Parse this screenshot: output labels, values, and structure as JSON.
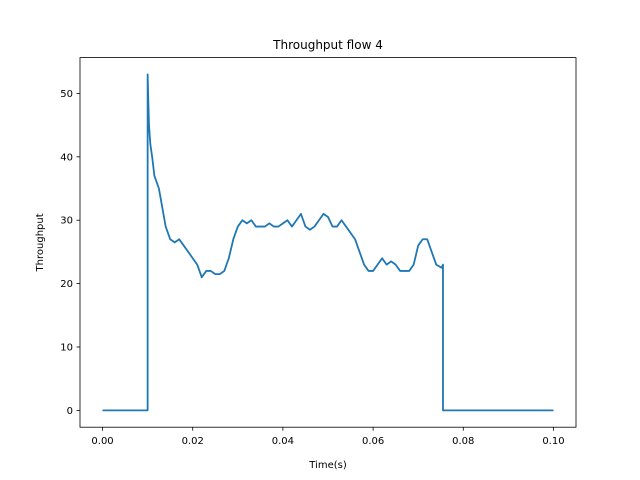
{
  "chart_data": {
    "type": "line",
    "title": "Throughput flow 4",
    "xlabel": "Time(s)",
    "ylabel": "Throughput",
    "xlim": [
      -0.005,
      0.105
    ],
    "ylim": [
      -2.65,
      55.65
    ],
    "xticks": [
      0.0,
      0.02,
      0.04,
      0.06,
      0.08,
      0.1
    ],
    "xtick_labels": [
      "0.00",
      "0.02",
      "0.04",
      "0.06",
      "0.08",
      "0.10"
    ],
    "yticks": [
      0,
      10,
      20,
      30,
      40,
      50
    ],
    "ytick_labels": [
      "0",
      "10",
      "20",
      "30",
      "40",
      "50"
    ],
    "grid": false,
    "line_color": "#1f77b4",
    "series": [
      {
        "x": [
          0.0,
          0.01,
          0.01,
          0.0101,
          0.0103,
          0.0106,
          0.011,
          0.0115,
          0.012,
          0.0125,
          0.013,
          0.0135,
          0.014,
          0.015,
          0.016,
          0.017,
          0.018,
          0.019,
          0.02,
          0.021,
          0.022,
          0.023,
          0.024,
          0.025,
          0.026,
          0.027,
          0.028,
          0.029,
          0.03,
          0.031,
          0.032,
          0.033,
          0.034,
          0.035,
          0.036,
          0.037,
          0.038,
          0.039,
          0.04,
          0.041,
          0.042,
          0.043,
          0.044,
          0.045,
          0.046,
          0.047,
          0.048,
          0.049,
          0.05,
          0.051,
          0.052,
          0.053,
          0.054,
          0.055,
          0.056,
          0.057,
          0.058,
          0.059,
          0.06,
          0.061,
          0.062,
          0.063,
          0.064,
          0.065,
          0.066,
          0.067,
          0.068,
          0.069,
          0.07,
          0.071,
          0.072,
          0.073,
          0.074,
          0.0752,
          0.0755,
          0.0755,
          0.1
        ],
        "y": [
          0,
          0,
          53,
          50,
          45,
          42,
          40,
          37,
          36,
          35,
          33,
          31,
          29,
          27,
          26.5,
          27,
          26,
          25,
          24,
          23,
          21,
          22,
          22,
          21.5,
          21.5,
          22,
          24,
          27,
          29,
          30,
          29.5,
          30,
          29,
          29,
          29,
          29.5,
          29,
          29,
          29.5,
          30,
          29,
          30,
          31,
          29,
          28.5,
          29,
          30,
          31,
          30.5,
          29,
          29,
          30,
          29,
          28,
          27,
          25,
          23,
          22,
          22,
          23,
          24,
          23,
          23.5,
          23,
          22,
          22,
          22,
          23,
          26,
          27,
          27,
          25,
          23,
          22.5,
          23,
          0,
          0
        ]
      }
    ]
  }
}
